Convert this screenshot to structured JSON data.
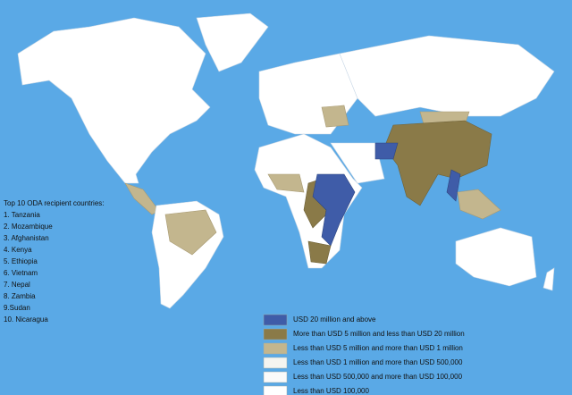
{
  "list": {
    "title": "Top 10 ODA recipient countries:",
    "items": [
      "1. Tanzania",
      "2. Mozambique",
      "3. Afghanistan",
      "4. Kenya",
      "5. Ethiopia",
      "6. Vietnam",
      "7. Nepal",
      "8. Zambia",
      "9.Sudan",
      "10. Nicaragua"
    ]
  },
  "legend": [
    {
      "label": "USD 20 million and above",
      "color": "#3f5ca8"
    },
    {
      "label": "More than USD 5 million and less than USD 20 million",
      "color": "#8a7a48"
    },
    {
      "label": "Less than USD 5 million and more than USD 1 million",
      "color": "#c3b68e"
    },
    {
      "label": "Less than USD 1 million and more than USD 500,000",
      "color": "#f4f4f0"
    },
    {
      "label": "Less than USD 500,000  and more than USD 100,000",
      "color": "#fafafa"
    },
    {
      "label": "Less than USD 100,000",
      "color": "#ffffff"
    }
  ]
}
